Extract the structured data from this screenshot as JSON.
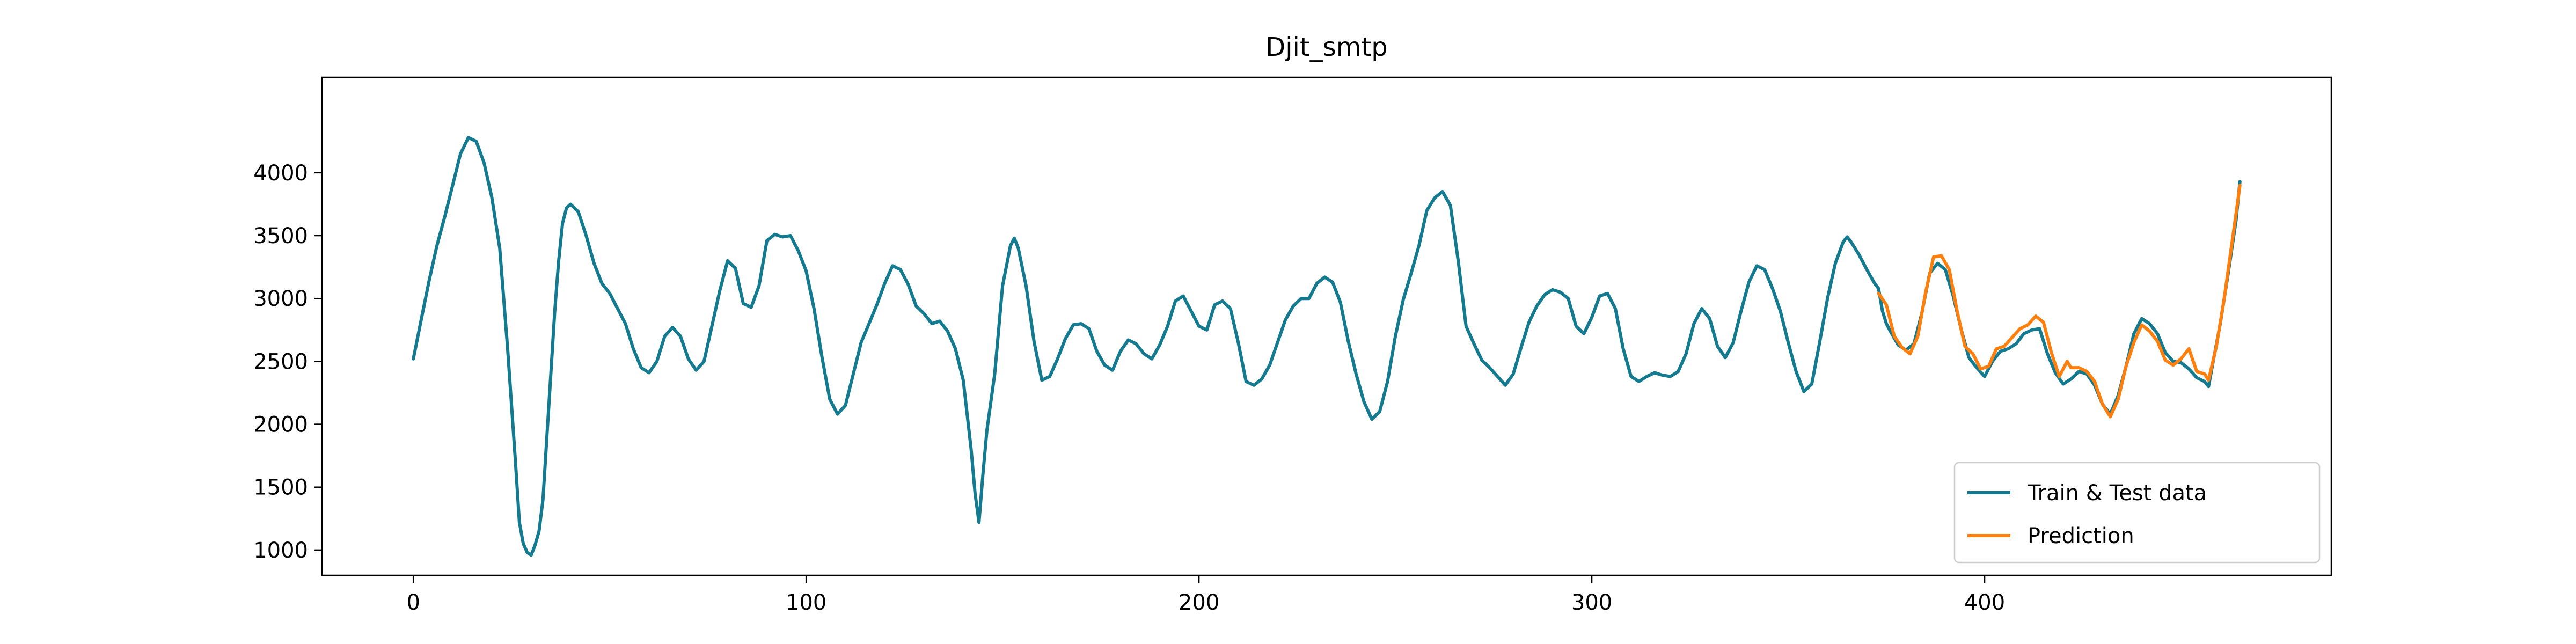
{
  "chart_data": {
    "type": "line",
    "title": "Djit_smtp",
    "xlabel": "",
    "ylabel": "",
    "xlim": [
      -23.25,
      488.25
    ],
    "ylim": [
      799,
      4759
    ],
    "xticks": [
      0,
      100,
      200,
      300,
      400
    ],
    "yticks": [
      1000,
      1500,
      2000,
      2500,
      3000,
      3500,
      4000
    ],
    "grid": false,
    "legend_position": "lower-right",
    "series": [
      {
        "name": "Train & Test data",
        "color": "#137a8f",
        "points": [
          [
            0,
            2520
          ],
          [
            2,
            2830
          ],
          [
            4,
            3140
          ],
          [
            6,
            3420
          ],
          [
            8,
            3650
          ],
          [
            10,
            3900
          ],
          [
            12,
            4150
          ],
          [
            14,
            4280
          ],
          [
            16,
            4250
          ],
          [
            18,
            4080
          ],
          [
            20,
            3800
          ],
          [
            22,
            3400
          ],
          [
            24,
            2600
          ],
          [
            26,
            1700
          ],
          [
            27,
            1220
          ],
          [
            28,
            1050
          ],
          [
            29,
            980
          ],
          [
            30,
            960
          ],
          [
            31,
            1040
          ],
          [
            32,
            1150
          ],
          [
            33,
            1400
          ],
          [
            34,
            1900
          ],
          [
            35,
            2400
          ],
          [
            36,
            2900
          ],
          [
            37,
            3300
          ],
          [
            38,
            3600
          ],
          [
            39,
            3720
          ],
          [
            40,
            3750
          ],
          [
            42,
            3690
          ],
          [
            44,
            3500
          ],
          [
            46,
            3280
          ],
          [
            48,
            3120
          ],
          [
            50,
            3040
          ],
          [
            52,
            2920
          ],
          [
            54,
            2800
          ],
          [
            56,
            2600
          ],
          [
            58,
            2450
          ],
          [
            60,
            2410
          ],
          [
            62,
            2500
          ],
          [
            64,
            2700
          ],
          [
            66,
            2770
          ],
          [
            68,
            2700
          ],
          [
            70,
            2520
          ],
          [
            72,
            2430
          ],
          [
            74,
            2500
          ],
          [
            76,
            2780
          ],
          [
            78,
            3060
          ],
          [
            80,
            3300
          ],
          [
            82,
            3240
          ],
          [
            84,
            2960
          ],
          [
            86,
            2930
          ],
          [
            88,
            3100
          ],
          [
            90,
            3460
          ],
          [
            92,
            3510
          ],
          [
            94,
            3490
          ],
          [
            96,
            3500
          ],
          [
            98,
            3380
          ],
          [
            100,
            3220
          ],
          [
            102,
            2920
          ],
          [
            104,
            2540
          ],
          [
            106,
            2200
          ],
          [
            108,
            2080
          ],
          [
            110,
            2150
          ],
          [
            112,
            2400
          ],
          [
            114,
            2650
          ],
          [
            116,
            2800
          ],
          [
            118,
            2950
          ],
          [
            120,
            3120
          ],
          [
            122,
            3260
          ],
          [
            124,
            3230
          ],
          [
            126,
            3110
          ],
          [
            128,
            2940
          ],
          [
            130,
            2880
          ],
          [
            132,
            2800
          ],
          [
            134,
            2820
          ],
          [
            136,
            2740
          ],
          [
            138,
            2600
          ],
          [
            140,
            2350
          ],
          [
            142,
            1800
          ],
          [
            143,
            1450
          ],
          [
            144,
            1220
          ],
          [
            145,
            1600
          ],
          [
            146,
            1950
          ],
          [
            148,
            2400
          ],
          [
            150,
            3100
          ],
          [
            152,
            3420
          ],
          [
            153,
            3480
          ],
          [
            154,
            3400
          ],
          [
            156,
            3100
          ],
          [
            158,
            2660
          ],
          [
            160,
            2350
          ],
          [
            162,
            2380
          ],
          [
            164,
            2520
          ],
          [
            166,
            2680
          ],
          [
            168,
            2790
          ],
          [
            170,
            2800
          ],
          [
            172,
            2760
          ],
          [
            174,
            2580
          ],
          [
            176,
            2470
          ],
          [
            178,
            2430
          ],
          [
            180,
            2580
          ],
          [
            182,
            2670
          ],
          [
            184,
            2640
          ],
          [
            186,
            2560
          ],
          [
            188,
            2520
          ],
          [
            190,
            2630
          ],
          [
            192,
            2780
          ],
          [
            194,
            2980
          ],
          [
            196,
            3020
          ],
          [
            198,
            2900
          ],
          [
            200,
            2780
          ],
          [
            202,
            2750
          ],
          [
            204,
            2950
          ],
          [
            206,
            2980
          ],
          [
            208,
            2920
          ],
          [
            210,
            2650
          ],
          [
            212,
            2340
          ],
          [
            214,
            2310
          ],
          [
            216,
            2360
          ],
          [
            218,
            2470
          ],
          [
            220,
            2650
          ],
          [
            222,
            2830
          ],
          [
            224,
            2940
          ],
          [
            226,
            3000
          ],
          [
            228,
            3000
          ],
          [
            230,
            3120
          ],
          [
            232,
            3170
          ],
          [
            234,
            3130
          ],
          [
            236,
            2970
          ],
          [
            238,
            2660
          ],
          [
            240,
            2400
          ],
          [
            242,
            2180
          ],
          [
            244,
            2040
          ],
          [
            246,
            2100
          ],
          [
            248,
            2340
          ],
          [
            250,
            2700
          ],
          [
            252,
            2990
          ],
          [
            254,
            3200
          ],
          [
            256,
            3420
          ],
          [
            258,
            3700
          ],
          [
            260,
            3800
          ],
          [
            262,
            3850
          ],
          [
            264,
            3740
          ],
          [
            266,
            3300
          ],
          [
            268,
            2780
          ],
          [
            270,
            2640
          ],
          [
            272,
            2510
          ],
          [
            274,
            2450
          ],
          [
            276,
            2380
          ],
          [
            278,
            2310
          ],
          [
            280,
            2400
          ],
          [
            282,
            2610
          ],
          [
            284,
            2810
          ],
          [
            286,
            2940
          ],
          [
            288,
            3030
          ],
          [
            290,
            3070
          ],
          [
            292,
            3050
          ],
          [
            294,
            3000
          ],
          [
            296,
            2780
          ],
          [
            298,
            2720
          ],
          [
            300,
            2850
          ],
          [
            302,
            3020
          ],
          [
            304,
            3040
          ],
          [
            306,
            2920
          ],
          [
            308,
            2600
          ],
          [
            310,
            2380
          ],
          [
            312,
            2340
          ],
          [
            314,
            2380
          ],
          [
            316,
            2410
          ],
          [
            318,
            2390
          ],
          [
            320,
            2380
          ],
          [
            322,
            2420
          ],
          [
            324,
            2560
          ],
          [
            326,
            2800
          ],
          [
            328,
            2920
          ],
          [
            330,
            2840
          ],
          [
            332,
            2620
          ],
          [
            334,
            2530
          ],
          [
            336,
            2650
          ],
          [
            338,
            2900
          ],
          [
            340,
            3130
          ],
          [
            342,
            3260
          ],
          [
            344,
            3230
          ],
          [
            346,
            3080
          ],
          [
            348,
            2900
          ],
          [
            350,
            2650
          ],
          [
            352,
            2420
          ],
          [
            354,
            2260
          ],
          [
            356,
            2320
          ],
          [
            358,
            2650
          ],
          [
            360,
            3000
          ],
          [
            362,
            3280
          ],
          [
            364,
            3450
          ],
          [
            365,
            3490
          ],
          [
            366,
            3450
          ],
          [
            368,
            3350
          ],
          [
            370,
            3230
          ],
          [
            372,
            3120
          ],
          [
            373,
            3080
          ],
          [
            374,
            2900
          ],
          [
            375,
            2800
          ],
          [
            376,
            2740
          ],
          [
            378,
            2630
          ],
          [
            380,
            2590
          ],
          [
            382,
            2640
          ],
          [
            384,
            2880
          ],
          [
            386,
            3200
          ],
          [
            388,
            3280
          ],
          [
            390,
            3230
          ],
          [
            392,
            3020
          ],
          [
            394,
            2760
          ],
          [
            396,
            2530
          ],
          [
            398,
            2450
          ],
          [
            400,
            2380
          ],
          [
            402,
            2500
          ],
          [
            404,
            2580
          ],
          [
            406,
            2600
          ],
          [
            408,
            2640
          ],
          [
            410,
            2720
          ],
          [
            412,
            2750
          ],
          [
            414,
            2760
          ],
          [
            416,
            2560
          ],
          [
            418,
            2410
          ],
          [
            420,
            2320
          ],
          [
            422,
            2360
          ],
          [
            424,
            2420
          ],
          [
            426,
            2400
          ],
          [
            428,
            2310
          ],
          [
            430,
            2160
          ],
          [
            432,
            2080
          ],
          [
            434,
            2230
          ],
          [
            436,
            2460
          ],
          [
            438,
            2720
          ],
          [
            440,
            2840
          ],
          [
            442,
            2800
          ],
          [
            444,
            2720
          ],
          [
            446,
            2570
          ],
          [
            448,
            2500
          ],
          [
            450,
            2490
          ],
          [
            452,
            2440
          ],
          [
            454,
            2370
          ],
          [
            456,
            2340
          ],
          [
            457,
            2300
          ],
          [
            458,
            2470
          ],
          [
            460,
            2800
          ],
          [
            462,
            3200
          ],
          [
            464,
            3620
          ],
          [
            465,
            3930
          ]
        ]
      },
      {
        "name": "Prediction",
        "color": "#ff7f0e",
        "points": [
          [
            373,
            3040
          ],
          [
            375,
            2950
          ],
          [
            377,
            2700
          ],
          [
            379,
            2610
          ],
          [
            381,
            2560
          ],
          [
            383,
            2700
          ],
          [
            385,
            3050
          ],
          [
            387,
            3330
          ],
          [
            389,
            3340
          ],
          [
            391,
            3230
          ],
          [
            393,
            2900
          ],
          [
            395,
            2620
          ],
          [
            397,
            2560
          ],
          [
            399,
            2440
          ],
          [
            401,
            2460
          ],
          [
            403,
            2600
          ],
          [
            405,
            2620
          ],
          [
            407,
            2690
          ],
          [
            409,
            2760
          ],
          [
            411,
            2790
          ],
          [
            413,
            2860
          ],
          [
            415,
            2810
          ],
          [
            417,
            2570
          ],
          [
            419,
            2380
          ],
          [
            421,
            2500
          ],
          [
            422,
            2450
          ],
          [
            424,
            2450
          ],
          [
            426,
            2420
          ],
          [
            428,
            2340
          ],
          [
            430,
            2160
          ],
          [
            432,
            2060
          ],
          [
            434,
            2200
          ],
          [
            436,
            2460
          ],
          [
            438,
            2650
          ],
          [
            440,
            2790
          ],
          [
            442,
            2740
          ],
          [
            444,
            2660
          ],
          [
            446,
            2510
          ],
          [
            448,
            2470
          ],
          [
            450,
            2520
          ],
          [
            452,
            2600
          ],
          [
            454,
            2420
          ],
          [
            456,
            2400
          ],
          [
            457,
            2350
          ],
          [
            459,
            2620
          ],
          [
            461,
            3000
          ],
          [
            463,
            3450
          ],
          [
            465,
            3900
          ]
        ]
      }
    ]
  }
}
